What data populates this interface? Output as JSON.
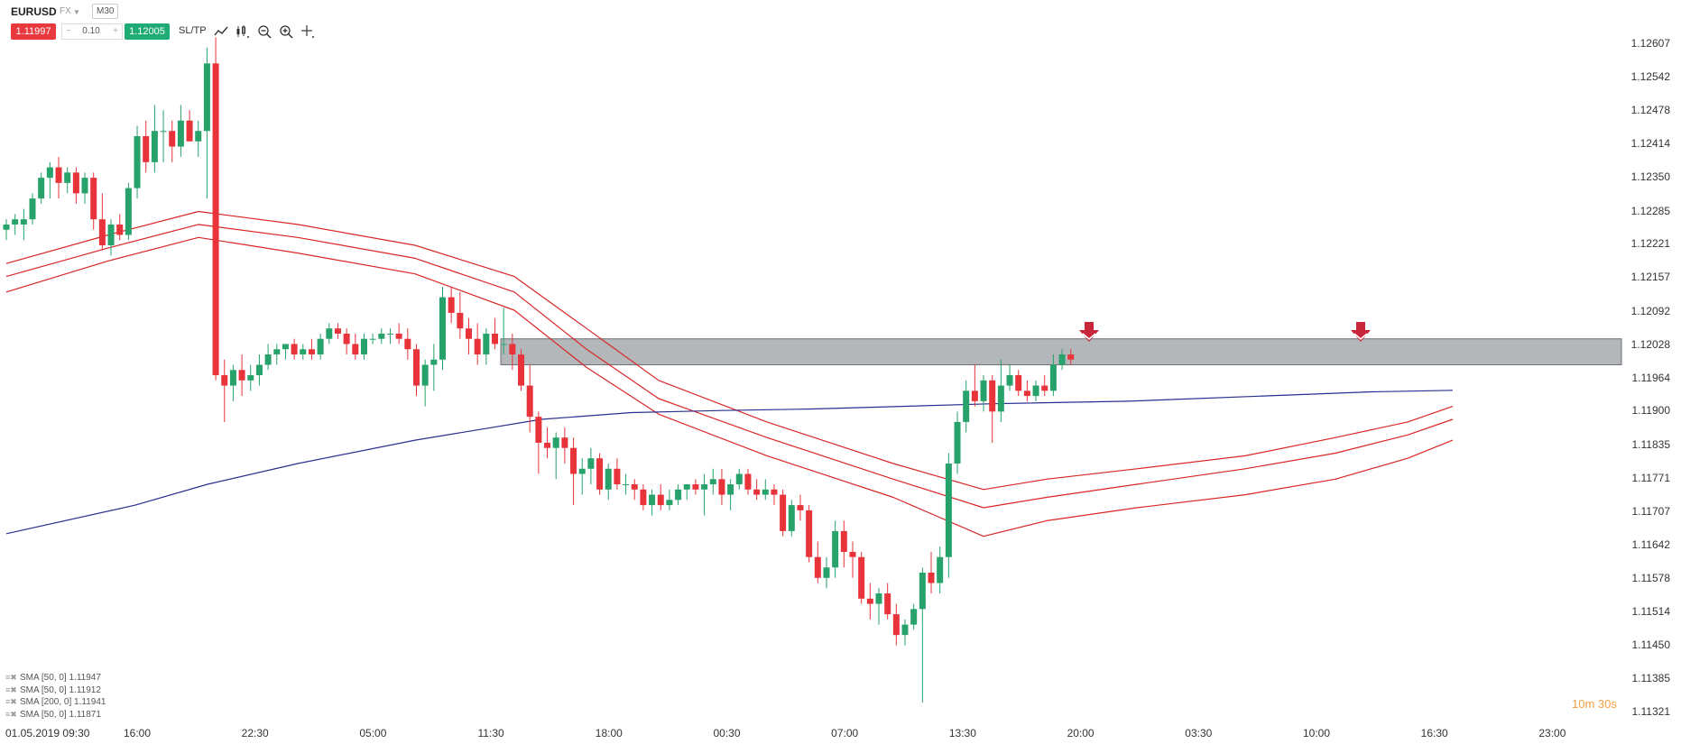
{
  "toolbar": {
    "symbol": "EURUSD",
    "market": "FX",
    "timeframe": "M30",
    "sell_price": "1.11997",
    "quantity": "0.10",
    "buy_price": "1.12005",
    "sltp_label": "SL/TP",
    "icons": [
      "line-chart-icon",
      "candles-icon",
      "zoom-out-icon",
      "zoom-in-icon",
      "crosshair-icon"
    ]
  },
  "colors": {
    "bull": "#26a26a",
    "bear": "#e8333a",
    "sma50": "#d92626",
    "sma200": "#2a2f8f",
    "zone": "#9b9fa3",
    "signal": "#c7263b",
    "countdown": "#f0a040"
  },
  "axis": {
    "price_labels": [
      "1.12607",
      "1.12542",
      "1.12478",
      "1.12414",
      "1.12350",
      "1.12285",
      "1.12221",
      "1.12157",
      "1.12092",
      "1.12028",
      "1.11964",
      "1.11900",
      "1.11835",
      "1.11771",
      "1.11707",
      "1.11642",
      "1.11578",
      "1.11514",
      "1.11450",
      "1.11385",
      "1.11321"
    ],
    "start_date": "01.05.2019 09:30",
    "time_labels": [
      "16:00",
      "22:30",
      "05:00",
      "11:30",
      "18:00",
      "00:30",
      "07:00",
      "13:30",
      "20:00",
      "03:30",
      "10:00",
      "16:30",
      "23:00"
    ]
  },
  "legend": [
    {
      "label": "SMA [50, 0] 1.11947"
    },
    {
      "label": "SMA [50, 0] 1.11912"
    },
    {
      "label": "SMA [200, 0] 1.11941"
    },
    {
      "label": "SMA [50, 0] 1.11871"
    }
  ],
  "countdown": "10m 30s",
  "chart_data": {
    "type": "candlestick",
    "symbol": "EURUSD",
    "timeframe": "M30",
    "ylim": [
      1.11321,
      1.12607
    ],
    "resistance_zone": [
      1.1199,
      1.1204
    ],
    "signal_arrow_positions": [
      "19:30",
      "12:00"
    ],
    "candles": [
      {
        "o": 1.1225,
        "h": 1.1227,
        "l": 1.1223,
        "c": 1.1226
      },
      {
        "o": 1.1226,
        "h": 1.1228,
        "l": 1.1224,
        "c": 1.1227
      },
      {
        "o": 1.1226,
        "h": 1.1229,
        "l": 1.1223,
        "c": 1.1227
      },
      {
        "o": 1.1227,
        "h": 1.1232,
        "l": 1.1226,
        "c": 1.1231
      },
      {
        "o": 1.1231,
        "h": 1.1236,
        "l": 1.123,
        "c": 1.1235
      },
      {
        "o": 1.1235,
        "h": 1.1238,
        "l": 1.1231,
        "c": 1.1237
      },
      {
        "o": 1.1237,
        "h": 1.1239,
        "l": 1.1231,
        "c": 1.1234
      },
      {
        "o": 1.1234,
        "h": 1.1237,
        "l": 1.1232,
        "c": 1.1236
      },
      {
        "o": 1.1236,
        "h": 1.1237,
        "l": 1.123,
        "c": 1.1232
      },
      {
        "o": 1.1232,
        "h": 1.1236,
        "l": 1.123,
        "c": 1.1235
      },
      {
        "o": 1.1235,
        "h": 1.1236,
        "l": 1.1225,
        "c": 1.1227
      },
      {
        "o": 1.1227,
        "h": 1.1232,
        "l": 1.1221,
        "c": 1.1222
      },
      {
        "o": 1.1222,
        "h": 1.1227,
        "l": 1.122,
        "c": 1.1226
      },
      {
        "o": 1.1226,
        "h": 1.1228,
        "l": 1.1223,
        "c": 1.1224
      },
      {
        "o": 1.1224,
        "h": 1.1234,
        "l": 1.1223,
        "c": 1.1233
      },
      {
        "o": 1.1233,
        "h": 1.1245,
        "l": 1.1231,
        "c": 1.1243
      },
      {
        "o": 1.1243,
        "h": 1.1246,
        "l": 1.1236,
        "c": 1.1238
      },
      {
        "o": 1.1238,
        "h": 1.1249,
        "l": 1.1236,
        "c": 1.1244
      },
      {
        "o": 1.1244,
        "h": 1.1248,
        "l": 1.1238,
        "c": 1.1244
      },
      {
        "o": 1.1244,
        "h": 1.1246,
        "l": 1.1238,
        "c": 1.1241
      },
      {
        "o": 1.1241,
        "h": 1.1249,
        "l": 1.1239,
        "c": 1.1246
      },
      {
        "o": 1.1246,
        "h": 1.1248,
        "l": 1.1242,
        "c": 1.1242
      },
      {
        "o": 1.1242,
        "h": 1.1246,
        "l": 1.1239,
        "c": 1.1244
      },
      {
        "o": 1.1244,
        "h": 1.126,
        "l": 1.1231,
        "c": 1.1257
      },
      {
        "o": 1.1257,
        "h": 1.1262,
        "l": 1.1196,
        "c": 1.1197
      },
      {
        "o": 1.1197,
        "h": 1.12,
        "l": 1.1188,
        "c": 1.1195
      },
      {
        "o": 1.1195,
        "h": 1.1199,
        "l": 1.1192,
        "c": 1.1198
      },
      {
        "o": 1.1198,
        "h": 1.1201,
        "l": 1.1193,
        "c": 1.1196
      },
      {
        "o": 1.1196,
        "h": 1.1199,
        "l": 1.1194,
        "c": 1.1197
      },
      {
        "o": 1.1197,
        "h": 1.1201,
        "l": 1.1195,
        "c": 1.1199
      },
      {
        "o": 1.1199,
        "h": 1.1203,
        "l": 1.1198,
        "c": 1.1201
      },
      {
        "o": 1.1201,
        "h": 1.1203,
        "l": 1.1199,
        "c": 1.1202
      },
      {
        "o": 1.1202,
        "h": 1.1203,
        "l": 1.12,
        "c": 1.1203
      },
      {
        "o": 1.1203,
        "h": 1.1204,
        "l": 1.12,
        "c": 1.1201
      },
      {
        "o": 1.1201,
        "h": 1.1203,
        "l": 1.12,
        "c": 1.1202
      },
      {
        "o": 1.1202,
        "h": 1.1204,
        "l": 1.12,
        "c": 1.1201
      },
      {
        "o": 1.1201,
        "h": 1.1205,
        "l": 1.12,
        "c": 1.1204
      },
      {
        "o": 1.1204,
        "h": 1.1207,
        "l": 1.1203,
        "c": 1.1206
      },
      {
        "o": 1.1206,
        "h": 1.1207,
        "l": 1.1204,
        "c": 1.1205
      },
      {
        "o": 1.1205,
        "h": 1.1206,
        "l": 1.1201,
        "c": 1.1203
      },
      {
        "o": 1.1203,
        "h": 1.1205,
        "l": 1.12,
        "c": 1.1201
      },
      {
        "o": 1.1201,
        "h": 1.1205,
        "l": 1.12,
        "c": 1.1204
      },
      {
        "o": 1.1204,
        "h": 1.1205,
        "l": 1.1203,
        "c": 1.1204
      },
      {
        "o": 1.1204,
        "h": 1.1206,
        "l": 1.1203,
        "c": 1.1205
      },
      {
        "o": 1.1205,
        "h": 1.1206,
        "l": 1.1203,
        "c": 1.1205
      },
      {
        "o": 1.1205,
        "h": 1.1207,
        "l": 1.1203,
        "c": 1.1204
      },
      {
        "o": 1.1204,
        "h": 1.1206,
        "l": 1.12,
        "c": 1.1202
      },
      {
        "o": 1.1202,
        "h": 1.1203,
        "l": 1.1193,
        "c": 1.1195
      },
      {
        "o": 1.1195,
        "h": 1.12,
        "l": 1.1191,
        "c": 1.1199
      },
      {
        "o": 1.1199,
        "h": 1.1203,
        "l": 1.1194,
        "c": 1.12
      },
      {
        "o": 1.12,
        "h": 1.1214,
        "l": 1.1198,
        "c": 1.1212
      },
      {
        "o": 1.1212,
        "h": 1.1214,
        "l": 1.1207,
        "c": 1.1209
      },
      {
        "o": 1.1209,
        "h": 1.1213,
        "l": 1.1204,
        "c": 1.1206
      },
      {
        "o": 1.1206,
        "h": 1.1208,
        "l": 1.1201,
        "c": 1.1204
      },
      {
        "o": 1.1204,
        "h": 1.1207,
        "l": 1.1199,
        "c": 1.1201
      },
      {
        "o": 1.1201,
        "h": 1.1206,
        "l": 1.1199,
        "c": 1.1205
      },
      {
        "o": 1.1205,
        "h": 1.1208,
        "l": 1.1202,
        "c": 1.1203
      },
      {
        "o": 1.1203,
        "h": 1.121,
        "l": 1.1201,
        "c": 1.1203
      },
      {
        "o": 1.1203,
        "h": 1.1205,
        "l": 1.1198,
        "c": 1.1201
      },
      {
        "o": 1.1201,
        "h": 1.1202,
        "l": 1.1194,
        "c": 1.1195
      },
      {
        "o": 1.1195,
        "h": 1.1199,
        "l": 1.1186,
        "c": 1.1189
      },
      {
        "o": 1.1189,
        "h": 1.119,
        "l": 1.1178,
        "c": 1.1184
      },
      {
        "o": 1.1184,
        "h": 1.1187,
        "l": 1.1181,
        "c": 1.1183
      },
      {
        "o": 1.1183,
        "h": 1.1186,
        "l": 1.1177,
        "c": 1.1185
      },
      {
        "o": 1.1185,
        "h": 1.1187,
        "l": 1.118,
        "c": 1.1183
      },
      {
        "o": 1.1183,
        "h": 1.1185,
        "l": 1.1172,
        "c": 1.1178
      },
      {
        "o": 1.1178,
        "h": 1.1181,
        "l": 1.1174,
        "c": 1.1179
      },
      {
        "o": 1.1179,
        "h": 1.1183,
        "l": 1.1176,
        "c": 1.1181
      },
      {
        "o": 1.1181,
        "h": 1.1182,
        "l": 1.1174,
        "c": 1.1175
      },
      {
        "o": 1.1175,
        "h": 1.118,
        "l": 1.1173,
        "c": 1.1179
      },
      {
        "o": 1.1179,
        "h": 1.1181,
        "l": 1.1175,
        "c": 1.1176
      },
      {
        "o": 1.1176,
        "h": 1.1178,
        "l": 1.1174,
        "c": 1.1176
      },
      {
        "o": 1.1176,
        "h": 1.1177,
        "l": 1.1173,
        "c": 1.1175
      },
      {
        "o": 1.1175,
        "h": 1.1176,
        "l": 1.1171,
        "c": 1.1172
      },
      {
        "o": 1.1172,
        "h": 1.1175,
        "l": 1.117,
        "c": 1.1174
      },
      {
        "o": 1.1174,
        "h": 1.1176,
        "l": 1.1171,
        "c": 1.1172
      },
      {
        "o": 1.1172,
        "h": 1.1175,
        "l": 1.1171,
        "c": 1.1173
      },
      {
        "o": 1.1173,
        "h": 1.1176,
        "l": 1.1172,
        "c": 1.1175
      },
      {
        "o": 1.1175,
        "h": 1.1176,
        "l": 1.1173,
        "c": 1.1176
      },
      {
        "o": 1.1176,
        "h": 1.1177,
        "l": 1.1174,
        "c": 1.1175
      },
      {
        "o": 1.1175,
        "h": 1.1178,
        "l": 1.117,
        "c": 1.1176
      },
      {
        "o": 1.1176,
        "h": 1.1179,
        "l": 1.1174,
        "c": 1.1177
      },
      {
        "o": 1.1177,
        "h": 1.1179,
        "l": 1.1172,
        "c": 1.1174
      },
      {
        "o": 1.1174,
        "h": 1.1177,
        "l": 1.1171,
        "c": 1.1176
      },
      {
        "o": 1.1176,
        "h": 1.1179,
        "l": 1.1175,
        "c": 1.1178
      },
      {
        "o": 1.1178,
        "h": 1.1179,
        "l": 1.1174,
        "c": 1.1175
      },
      {
        "o": 1.1175,
        "h": 1.1177,
        "l": 1.1173,
        "c": 1.1174
      },
      {
        "o": 1.1174,
        "h": 1.1177,
        "l": 1.1173,
        "c": 1.1175
      },
      {
        "o": 1.1175,
        "h": 1.1176,
        "l": 1.1172,
        "c": 1.1174
      },
      {
        "o": 1.1174,
        "h": 1.1175,
        "l": 1.1166,
        "c": 1.1167
      },
      {
        "o": 1.1167,
        "h": 1.1173,
        "l": 1.1166,
        "c": 1.1172
      },
      {
        "o": 1.1172,
        "h": 1.1174,
        "l": 1.1169,
        "c": 1.1171
      },
      {
        "o": 1.1171,
        "h": 1.1172,
        "l": 1.1161,
        "c": 1.1162
      },
      {
        "o": 1.1162,
        "h": 1.1165,
        "l": 1.1157,
        "c": 1.1158
      },
      {
        "o": 1.1158,
        "h": 1.1162,
        "l": 1.1156,
        "c": 1.116
      },
      {
        "o": 1.116,
        "h": 1.1169,
        "l": 1.1158,
        "c": 1.1167
      },
      {
        "o": 1.1167,
        "h": 1.1169,
        "l": 1.116,
        "c": 1.1163
      },
      {
        "o": 1.1163,
        "h": 1.1165,
        "l": 1.1158,
        "c": 1.1162
      },
      {
        "o": 1.1162,
        "h": 1.1163,
        "l": 1.1153,
        "c": 1.1154
      },
      {
        "o": 1.1154,
        "h": 1.1157,
        "l": 1.115,
        "c": 1.1153
      },
      {
        "o": 1.1153,
        "h": 1.1156,
        "l": 1.1149,
        "c": 1.1155
      },
      {
        "o": 1.1155,
        "h": 1.1157,
        "l": 1.115,
        "c": 1.1151
      },
      {
        "o": 1.1151,
        "h": 1.1153,
        "l": 1.1145,
        "c": 1.1147
      },
      {
        "o": 1.1147,
        "h": 1.115,
        "l": 1.1145,
        "c": 1.1149
      },
      {
        "o": 1.1149,
        "h": 1.1153,
        "l": 1.1148,
        "c": 1.1152
      },
      {
        "o": 1.1152,
        "h": 1.116,
        "l": 1.1134,
        "c": 1.1159
      },
      {
        "o": 1.1159,
        "h": 1.1163,
        "l": 1.1155,
        "c": 1.1157
      },
      {
        "o": 1.1157,
        "h": 1.1164,
        "l": 1.1155,
        "c": 1.1162
      },
      {
        "o": 1.1162,
        "h": 1.1182,
        "l": 1.1158,
        "c": 1.118
      },
      {
        "o": 1.118,
        "h": 1.119,
        "l": 1.1178,
        "c": 1.1188
      },
      {
        "o": 1.1188,
        "h": 1.1196,
        "l": 1.1186,
        "c": 1.1194
      },
      {
        "o": 1.1194,
        "h": 1.1199,
        "l": 1.1191,
        "c": 1.1192
      },
      {
        "o": 1.1192,
        "h": 1.1197,
        "l": 1.119,
        "c": 1.1196
      },
      {
        "o": 1.1196,
        "h": 1.1197,
        "l": 1.1184,
        "c": 1.119
      },
      {
        "o": 1.119,
        "h": 1.12,
        "l": 1.1188,
        "c": 1.1195
      },
      {
        "o": 1.1195,
        "h": 1.1199,
        "l": 1.1194,
        "c": 1.1197
      },
      {
        "o": 1.1197,
        "h": 1.1198,
        "l": 1.1193,
        "c": 1.1194
      },
      {
        "o": 1.1194,
        "h": 1.1196,
        "l": 1.1192,
        "c": 1.1193
      },
      {
        "o": 1.1193,
        "h": 1.1196,
        "l": 1.1192,
        "c": 1.1195
      },
      {
        "o": 1.1195,
        "h": 1.1197,
        "l": 1.1193,
        "c": 1.1194
      },
      {
        "o": 1.1194,
        "h": 1.1201,
        "l": 1.1193,
        "c": 1.1199
      },
      {
        "o": 1.1199,
        "h": 1.1202,
        "l": 1.1198,
        "c": 1.1201
      },
      {
        "o": 1.1201,
        "h": 1.1202,
        "l": 1.1199,
        "c": 1.12
      }
    ]
  }
}
